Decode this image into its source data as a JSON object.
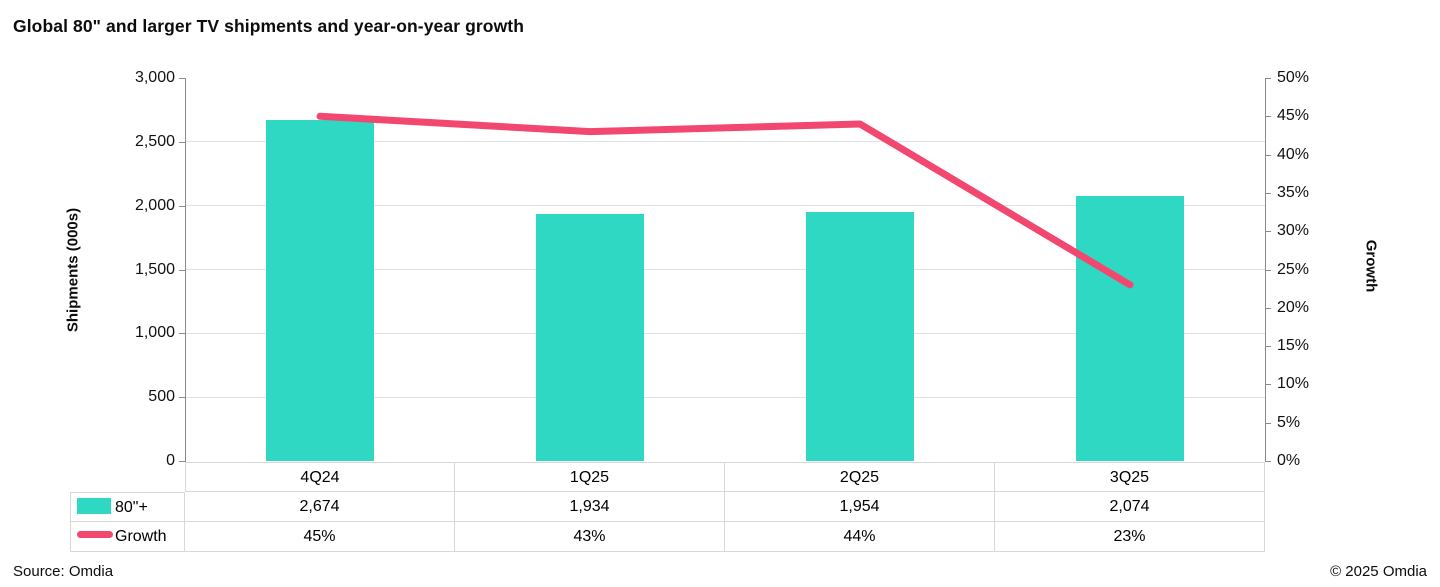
{
  "title": "Global 80\" and larger TV shipments and year-on-year growth",
  "footer": {
    "source": "Source: Omdia",
    "copyright": "© 2025 Omdia"
  },
  "colors": {
    "bar": "#2ED8C3",
    "line": "#F2476F",
    "gridline": "#E2E2E2",
    "axis": "#8A8A8A",
    "table_border": "#D8D8D8"
  },
  "chart_data": {
    "type": "bar",
    "subtype": "bar-line-combo",
    "categories": [
      "4Q24",
      "1Q25",
      "2Q25",
      "3Q25"
    ],
    "series": [
      {
        "name": "80\"+",
        "type": "bar",
        "axis": "left",
        "color": "#2ED8C3",
        "values": [
          2674,
          1934,
          1954,
          2074
        ],
        "display_values": [
          "2,674",
          "1,934",
          "1,954",
          "2,074"
        ]
      },
      {
        "name": "Growth",
        "type": "line",
        "axis": "right",
        "color": "#F2476F",
        "values": [
          45,
          43,
          44,
          23
        ],
        "display_values": [
          "45%",
          "43%",
          "44%",
          "23%"
        ]
      }
    ],
    "left_axis": {
      "label": "Shipments (000s)",
      "min": 0,
      "max": 3000,
      "step": 500,
      "tick_labels": [
        "0",
        "500",
        "1,000",
        "1,500",
        "2,000",
        "2,500",
        "3,000"
      ]
    },
    "right_axis": {
      "label": "Growth",
      "min": 0,
      "max": 50,
      "step": 5,
      "tick_labels": [
        "0%",
        "5%",
        "10%",
        "15%",
        "20%",
        "25%",
        "30%",
        "35%",
        "40%",
        "45%",
        "50%"
      ]
    },
    "grid": true,
    "legend_position": "table-left"
  }
}
